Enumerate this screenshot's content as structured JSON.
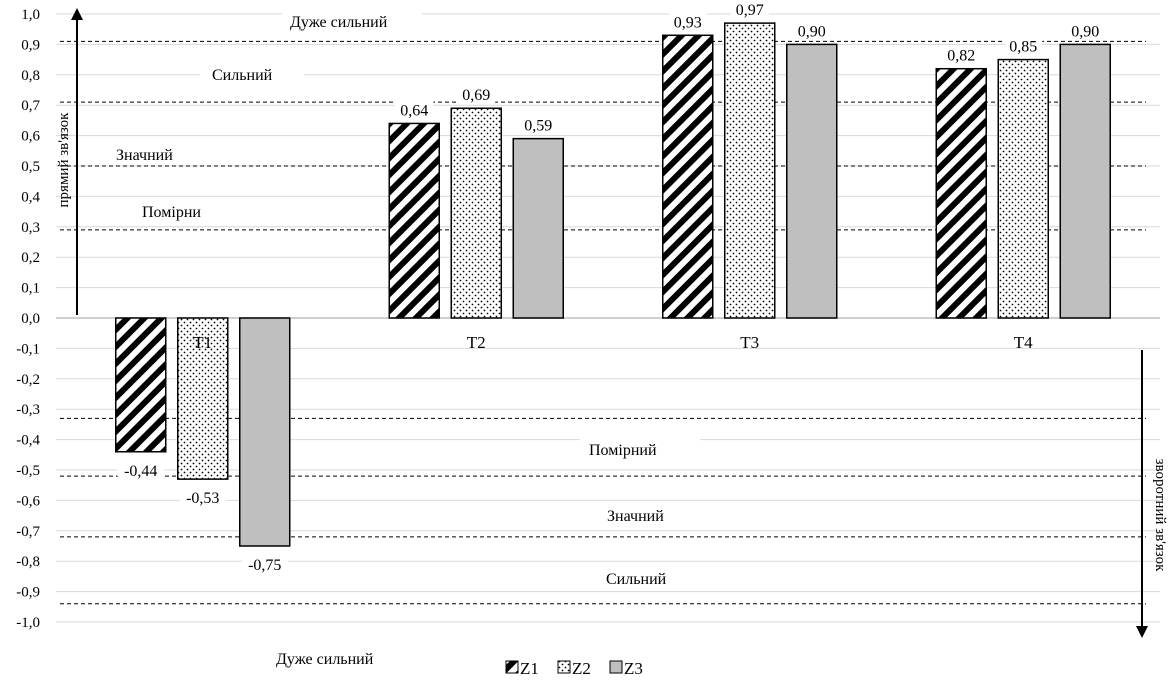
{
  "chart_data": {
    "type": "bar",
    "categories": [
      "T1",
      "T2",
      "T3",
      "T4"
    ],
    "series": [
      {
        "name": "Z1",
        "values": [
          -0.44,
          0.64,
          0.93,
          0.82
        ],
        "pattern": "diagonal-stripes",
        "color": "#000000"
      },
      {
        "name": "Z2",
        "values": [
          -0.53,
          0.69,
          0.97,
          0.85
        ],
        "pattern": "dots",
        "color": "#000000"
      },
      {
        "name": "Z3",
        "values": [
          -0.75,
          0.59,
          0.9,
          0.9
        ],
        "pattern": "solid",
        "color": "#bfbfbf"
      }
    ],
    "data_labels": [
      [
        "-0,44",
        "0,64",
        "0,93",
        "0,82"
      ],
      [
        "-0,53",
        "0,69",
        "0,97",
        "0,85"
      ],
      [
        "-0,75",
        "0,59",
        "0,90",
        "0,90"
      ]
    ],
    "ylim": [
      -1.0,
      1.0
    ],
    "yticks": [
      1.0,
      0.9,
      0.8,
      0.7,
      0.6,
      0.5,
      0.4,
      0.3,
      0.2,
      0.1,
      0.0,
      -0.1,
      -0.2,
      -0.3,
      -0.4,
      -0.5,
      -0.6,
      -0.7,
      -0.8,
      -0.9,
      -1.0
    ],
    "ytick_labels": [
      "1,0",
      "0,9",
      "0,8",
      "0,7",
      "0,6",
      "0,5",
      "0,4",
      "0,3",
      "0,2",
      "0,1",
      "0,0",
      "-0,1",
      "-0,2",
      "-0,3",
      "-0,4",
      "-0,5",
      "-0,6",
      "-0,7",
      "-0,8",
      "-0,9",
      "-1,0"
    ],
    "grid": true,
    "legend_position": "bottom-center",
    "positive_axis_label": "прямий зв'язок",
    "negative_axis_label": "зворотний зв'язок",
    "threshold_lines": [
      0.91,
      0.71,
      0.5,
      0.29,
      -0.33,
      -0.52,
      -0.72,
      -0.94
    ],
    "zone_labels": {
      "positive": [
        "Дуже сильний",
        "Сильний",
        "Значний",
        "Помірни"
      ],
      "negative": [
        "Помірний",
        "Значний",
        "Сильний",
        "Дуже сильний"
      ]
    }
  }
}
